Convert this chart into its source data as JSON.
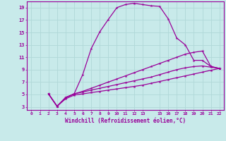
{
  "xlabel": "Windchill (Refroidissement éolien,°C)",
  "bg_color": "#c8eaea",
  "grid_color": "#b0d8d8",
  "line_color": "#990099",
  "xlim": [
    -0.5,
    22.5
  ],
  "ylim": [
    2.5,
    20.0
  ],
  "xticks": [
    0,
    1,
    2,
    3,
    4,
    5,
    6,
    7,
    8,
    9,
    10,
    11,
    12,
    13,
    15,
    16,
    17,
    18,
    19,
    20,
    21,
    22
  ],
  "yticks": [
    3,
    5,
    7,
    9,
    11,
    13,
    15,
    17,
    19
  ],
  "curve1_x": [
    2,
    3,
    4,
    5,
    6,
    7,
    8,
    9,
    10,
    11,
    12,
    13,
    14,
    15,
    16,
    17,
    18,
    19,
    20,
    21,
    22
  ],
  "curve1_y": [
    5.1,
    3.1,
    4.5,
    5.1,
    8.2,
    12.4,
    15.1,
    17.1,
    19.0,
    19.5,
    19.7,
    19.5,
    19.3,
    19.2,
    17.2,
    14.1,
    13.0,
    10.5,
    10.5,
    9.5,
    9.2
  ],
  "curve2_x": [
    2,
    3,
    4,
    5,
    6,
    7,
    8,
    9,
    10,
    11,
    12,
    13,
    14,
    15,
    16,
    17,
    18,
    19,
    20,
    21,
    22
  ],
  "curve2_y": [
    5.1,
    3.1,
    4.5,
    5.1,
    5.5,
    6.0,
    6.5,
    7.0,
    7.5,
    8.0,
    8.5,
    9.0,
    9.5,
    10.0,
    10.5,
    11.0,
    11.5,
    11.8,
    12.0,
    9.5,
    9.2
  ],
  "curve3_x": [
    2,
    3,
    4,
    5,
    6,
    7,
    8,
    9,
    10,
    11,
    12,
    13,
    14,
    15,
    16,
    17,
    18,
    19,
    20,
    21,
    22
  ],
  "curve3_y": [
    5.1,
    3.1,
    4.5,
    5.1,
    5.4,
    5.7,
    6.0,
    6.3,
    6.6,
    6.9,
    7.2,
    7.5,
    7.8,
    8.2,
    8.6,
    9.0,
    9.3,
    9.5,
    9.6,
    9.4,
    9.2
  ],
  "curve4_x": [
    2,
    3,
    4,
    5,
    6,
    7,
    8,
    9,
    10,
    11,
    12,
    13,
    14,
    15,
    16,
    17,
    18,
    19,
    20,
    21,
    22
  ],
  "curve4_y": [
    5.1,
    3.1,
    4.3,
    4.9,
    5.1,
    5.3,
    5.5,
    5.7,
    5.9,
    6.1,
    6.3,
    6.5,
    6.8,
    7.1,
    7.4,
    7.7,
    8.0,
    8.3,
    8.6,
    8.9,
    9.2
  ]
}
